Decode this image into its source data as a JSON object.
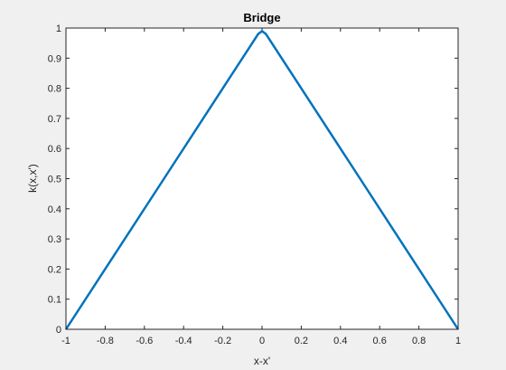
{
  "chart_data": {
    "type": "line",
    "title": "Bridge",
    "xlabel": "x-x'",
    "ylabel": "k(x,x')",
    "xlim": [
      -1,
      1
    ],
    "ylim": [
      0,
      1
    ],
    "x_ticks": [
      "-1",
      "-0.8",
      "-0.6",
      "-0.4",
      "-0.2",
      "0",
      "0.2",
      "0.4",
      "0.6",
      "0.8",
      "1"
    ],
    "y_ticks": [
      "0",
      "0.1",
      "0.2",
      "0.3",
      "0.4",
      "0.5",
      "0.6",
      "0.7",
      "0.8",
      "0.9",
      "1"
    ],
    "grid": false,
    "series": [
      {
        "x": [
          -1,
          -0.5,
          -0.02,
          0,
          0.02,
          0.5,
          1
        ],
        "y": [
          0,
          0.5,
          0.98,
          0.99,
          0.98,
          0.5,
          0
        ],
        "color": "#0072bd"
      }
    ]
  },
  "colors": {
    "figure_background": "#f0f0f0",
    "axes_background": "#ffffff",
    "axes_color": "#262626",
    "line": "#0072bd"
  }
}
